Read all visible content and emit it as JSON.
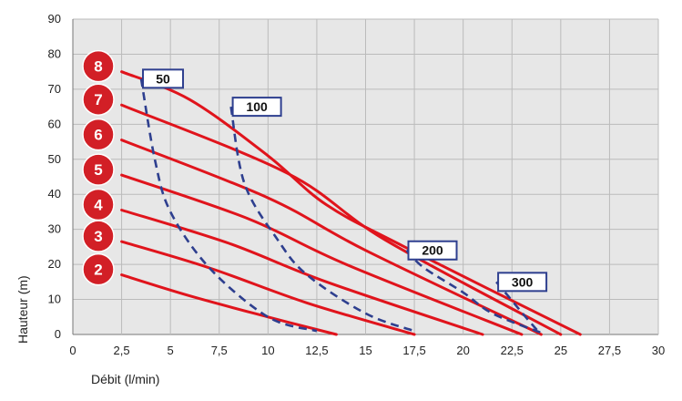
{
  "chart_data": {
    "type": "line",
    "title": "",
    "xlabel": "Débit (l/min)",
    "ylabel": "Hauteur (m)",
    "xlim": [
      0,
      30
    ],
    "ylim": [
      0,
      90
    ],
    "x_ticks": [
      "0",
      "2,5",
      "5",
      "7,5",
      "10",
      "12,5",
      "15",
      "17,5",
      "20",
      "22,5",
      "25",
      "27,5",
      "30"
    ],
    "y_ticks": [
      "0",
      "10",
      "20",
      "30",
      "40",
      "50",
      "60",
      "70",
      "80",
      "90"
    ],
    "grid": true,
    "colors": {
      "pressure_curve": "#e0141c",
      "consumption_curve": "#2e3f8f",
      "badge": "#d21f26",
      "grid": "#bbbbbb",
      "plot_bg": "#e7e7e7"
    },
    "series": [
      {
        "name": "2",
        "kind": "pressure",
        "x": [
          2.5,
          6,
          10,
          13.5
        ],
        "y": [
          17,
          11,
          5,
          0
        ]
      },
      {
        "name": "3",
        "kind": "pressure",
        "x": [
          2.5,
          7,
          12,
          17.5
        ],
        "y": [
          26.5,
          19,
          9,
          0
        ]
      },
      {
        "name": "4",
        "kind": "pressure",
        "x": [
          2.5,
          8,
          13,
          21
        ],
        "y": [
          35.5,
          26,
          15,
          0
        ]
      },
      {
        "name": "5",
        "kind": "pressure",
        "x": [
          2.5,
          9,
          14,
          23
        ],
        "y": [
          45.5,
          33,
          20,
          0
        ]
      },
      {
        "name": "6",
        "kind": "pressure",
        "x": [
          2.5,
          10,
          15,
          24
        ],
        "y": [
          55.5,
          39,
          24,
          0
        ]
      },
      {
        "name": "7",
        "kind": "pressure",
        "x": [
          2.5,
          11,
          16,
          25
        ],
        "y": [
          65.5,
          46,
          27,
          0
        ]
      },
      {
        "name": "8",
        "kind": "pressure",
        "x": [
          2.5,
          6,
          10,
          13,
          17,
          26
        ],
        "y": [
          75,
          67,
          51,
          37,
          25,
          0
        ]
      },
      {
        "name": "50",
        "kind": "air",
        "x": [
          3.5,
          4.2,
          5,
          7,
          10,
          12.5
        ],
        "y": [
          73,
          50,
          35,
          19,
          5,
          1
        ]
      },
      {
        "name": "100",
        "kind": "air",
        "x": [
          8.1,
          8.8,
          10.5,
          12,
          15,
          17.5
        ],
        "y": [
          65,
          43,
          27,
          17,
          6,
          1
        ]
      },
      {
        "name": "200",
        "kind": "air",
        "x": [
          17.1,
          18,
          20,
          21.5,
          24
        ],
        "y": [
          24,
          19,
          12,
          6,
          0.5
        ]
      },
      {
        "name": "300",
        "kind": "air",
        "x": [
          21.7,
          22.3,
          23.2,
          23.9
        ],
        "y": [
          15,
          11,
          5,
          0.5
        ]
      }
    ],
    "badges": [
      "2",
      "3",
      "4",
      "5",
      "6",
      "7",
      "8"
    ],
    "boxes": [
      "50",
      "100",
      "200",
      "300"
    ]
  }
}
